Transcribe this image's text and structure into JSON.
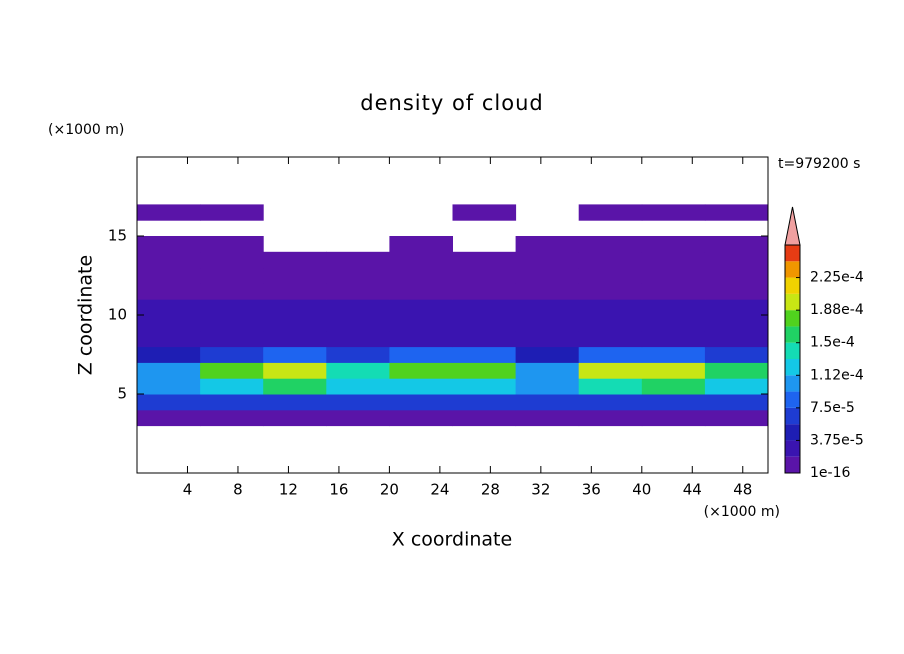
{
  "chart_data": {
    "type": "contour",
    "title": "density of cloud",
    "time_label": "t=979200 s",
    "x_label": "X coordinate",
    "y_label": "Z coordinate",
    "x_unit": "(×1000 m)",
    "y_unit": "(×1000 m)",
    "xlim": [
      0,
      50
    ],
    "ylim": [
      0,
      20
    ],
    "xticks": [
      4,
      8,
      12,
      16,
      20,
      24,
      28,
      32,
      36,
      40,
      44,
      48
    ],
    "yticks": [
      5,
      10,
      15
    ],
    "x": [
      2.5,
      7.5,
      12.5,
      17.5,
      22.5,
      27.5,
      32.5,
      37.5,
      42.5,
      47.5
    ],
    "z": [
      3.5,
      4.5,
      5.5,
      6.5,
      7.5,
      8.5,
      9.5,
      10.5,
      11.5,
      12.5,
      13.5,
      14.5,
      15.5,
      16.5
    ],
    "values": [
      [
        1.5e-05,
        1.5e-05,
        1.5e-05,
        1.5e-05,
        1.5e-05,
        1.5e-05,
        1.5e-05,
        1.5e-05,
        1.5e-05,
        1.5e-05
      ],
      [
        6e-05,
        7e-05,
        7e-05,
        6e-05,
        7e-05,
        6e-05,
        6e-05,
        7e-05,
        7e-05,
        6e-05
      ],
      [
        0.00011,
        0.00013,
        0.00015,
        0.00012,
        0.00013,
        0.00012,
        0.0001,
        0.00014,
        0.00015,
        0.00012
      ],
      [
        0.00011,
        0.00017,
        0.0002,
        0.00014,
        0.00018,
        0.00017,
        0.00011,
        0.00019,
        0.0002,
        0.00016
      ],
      [
        5e-05,
        7e-05,
        9e-05,
        6e-05,
        8e-05,
        8e-05,
        5e-05,
        9e-05,
        9e-05,
        7e-05
      ],
      [
        3e-05,
        3e-05,
        3e-05,
        3e-05,
        3e-05,
        3e-05,
        3e-05,
        3e-05,
        3e-05,
        3e-05
      ],
      [
        2.5e-05,
        2.5e-05,
        2.5e-05,
        2.5e-05,
        2.5e-05,
        2.5e-05,
        2.5e-05,
        2.5e-05,
        2.5e-05,
        2.5e-05
      ],
      [
        2e-05,
        2e-05,
        2e-05,
        2e-05,
        2e-05,
        2e-05,
        2e-05,
        2e-05,
        2e-05,
        2e-05
      ],
      [
        1e-05,
        1e-05,
        1e-05,
        1e-05,
        1e-05,
        1e-05,
        1e-05,
        1e-05,
        1e-05,
        1e-05
      ],
      [
        8e-06,
        8e-06,
        8e-06,
        8e-06,
        8e-06,
        8e-06,
        8e-06,
        8e-06,
        8e-06,
        8e-06
      ],
      [
        5e-06,
        5e-06,
        5e-06,
        5e-06,
        5e-06,
        5e-06,
        5e-06,
        5e-06,
        5e-06,
        5e-06
      ],
      [
        5e-06,
        5e-06,
        null,
        null,
        5e-06,
        null,
        5e-06,
        5e-06,
        5e-06,
        5e-06
      ],
      [
        null,
        null,
        null,
        null,
        null,
        null,
        null,
        null,
        null,
        null
      ],
      [
        1e-06,
        1e-06,
        null,
        null,
        null,
        1e-06,
        null,
        1e-06,
        1e-06,
        1e-06
      ]
    ],
    "colorbar": {
      "levels": [
        1e-16,
        1.875e-05,
        3.75e-05,
        5.625e-05,
        7.5e-05,
        9.375e-05,
        0.0001125,
        0.00013125,
        0.00015,
        0.00016875,
        0.0001875,
        0.00020625,
        0.000225,
        0.00024375,
        0.0002625
      ],
      "colors": [
        "#5a14a8",
        "#3a14b0",
        "#1e1eb4",
        "#1e3cd2",
        "#1e64f0",
        "#1e96f0",
        "#14c8e6",
        "#14dcb4",
        "#20d264",
        "#50d21e",
        "#c8e614",
        "#f0d200",
        "#f09600",
        "#e63c14"
      ],
      "extend_color": "#f0a0a0",
      "ticks": [
        1e-16,
        {
          "value": 3.75e-05,
          "label": "3.75e-5"
        },
        {
          "value": 7.5e-05,
          "label": "7.5e-5"
        },
        {
          "value": 0.0001125,
          "label": "1.12e-4"
        },
        {
          "value": 0.00015,
          "label": "1.5e-4"
        },
        {
          "value": 0.0001875,
          "label": "1.88e-4"
        },
        {
          "value": 0.000225,
          "label": "2.25e-4"
        }
      ]
    }
  }
}
